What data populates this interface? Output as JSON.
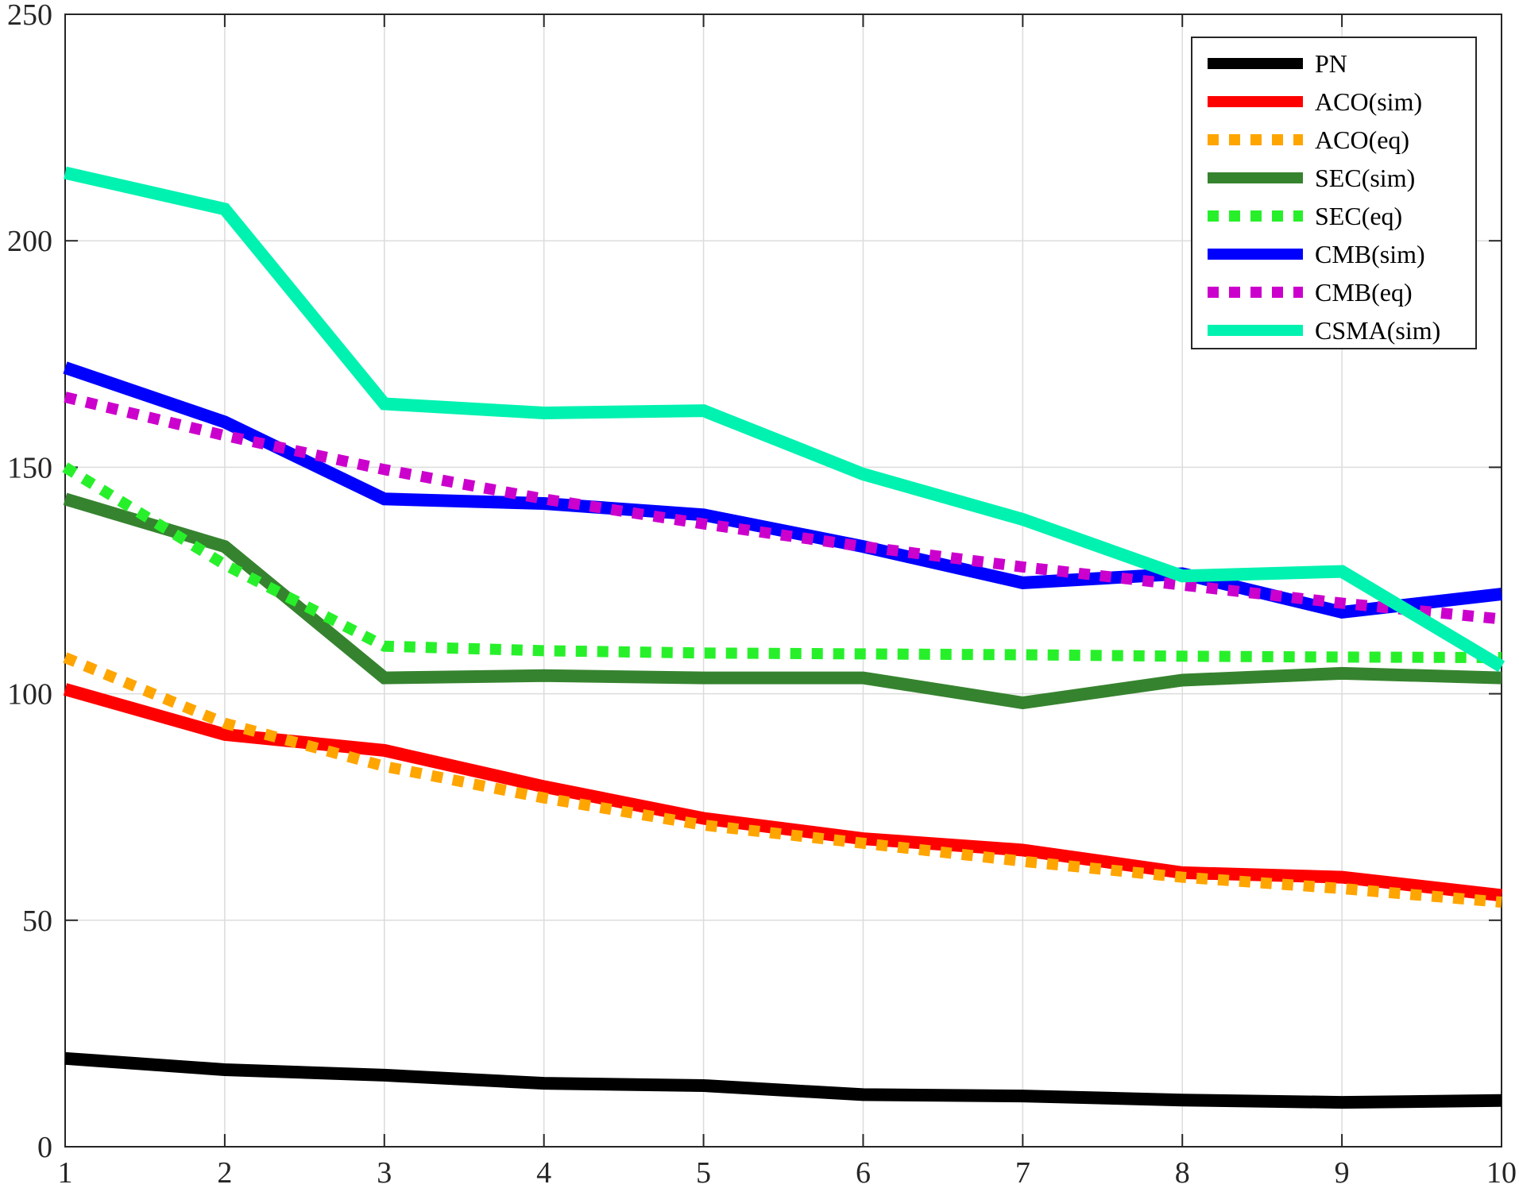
{
  "chart_data": {
    "type": "line",
    "title": "",
    "xlabel": "",
    "ylabel": "",
    "x": [
      1,
      2,
      3,
      4,
      5,
      6,
      7,
      8,
      9,
      10
    ],
    "xlim": [
      1,
      10
    ],
    "ylim": [
      0,
      250
    ],
    "xticks": [
      "1",
      "2",
      "3",
      "4",
      "5",
      "6",
      "7",
      "8",
      "9",
      "10"
    ],
    "yticks": [
      "0",
      "50",
      "100",
      "150",
      "200",
      "250"
    ],
    "grid": true,
    "legend_position": "top-right",
    "series": [
      {
        "name": "PN",
        "color": "#000000",
        "style": "solid",
        "values": [
          19.5,
          17.0,
          15.8,
          14.0,
          13.5,
          11.5,
          11.2,
          10.3,
          9.8,
          10.2
        ]
      },
      {
        "name": "ACO(sim)",
        "color": "#ff0000",
        "style": "solid",
        "values": [
          101,
          91,
          87.5,
          79.5,
          72.5,
          68,
          65.5,
          60.5,
          59.5,
          55.5
        ]
      },
      {
        "name": "ACO(eq)",
        "color": "#ffa500",
        "style": "dotted",
        "values": [
          108,
          93.5,
          84,
          77,
          71,
          67,
          63,
          59.5,
          57,
          54
        ]
      },
      {
        "name": "SEC(sim)",
        "color": "#36832f",
        "style": "solid",
        "values": [
          143,
          132.5,
          103.5,
          104,
          103.5,
          103.5,
          98,
          103,
          104.5,
          103.5
        ]
      },
      {
        "name": "SEC(eq)",
        "color": "#27f02b",
        "style": "dotted",
        "values": [
          150,
          128.5,
          110.5,
          109.5,
          109,
          108.8,
          108.6,
          108.3,
          108.1,
          108
        ]
      },
      {
        "name": "CMB(sim)",
        "color": "#0000ff",
        "style": "solid",
        "values": [
          172,
          160,
          143,
          142,
          139.5,
          132.5,
          124.5,
          126.5,
          118,
          122
        ]
      },
      {
        "name": "CMB(eq)",
        "color": "#cc00cc",
        "style": "dotted",
        "values": [
          165.5,
          157,
          149.5,
          143,
          137.5,
          132.5,
          128,
          124,
          120,
          116.5
        ]
      },
      {
        "name": "CSMA(sim)",
        "color": "#00f2b0",
        "style": "solid",
        "values": [
          215,
          207,
          164,
          162,
          162.5,
          148.5,
          138.5,
          126,
          127,
          106
        ]
      }
    ]
  }
}
